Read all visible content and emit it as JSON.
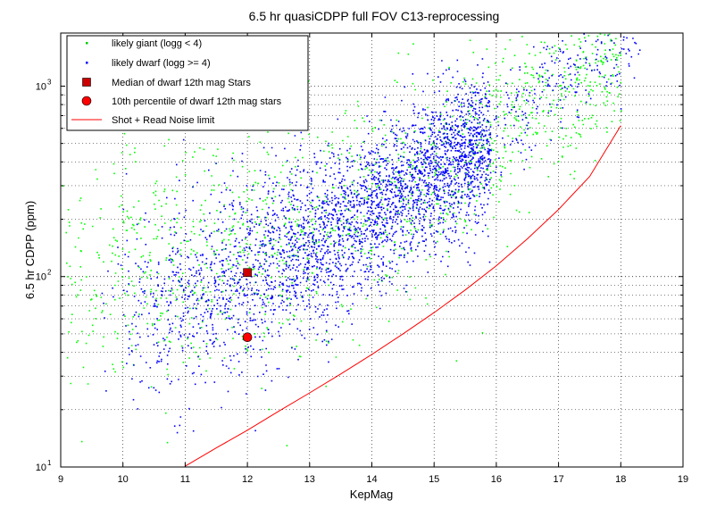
{
  "chart_data": {
    "type": "scatter",
    "title": "6.5 hr quasiCDPP full FOV C13-reprocessing",
    "xlabel": "KepMag",
    "ylabel": "6.5 hr CDPP (ppm)",
    "xlim": [
      9,
      19
    ],
    "ylim": [
      10,
      1900
    ],
    "yscale": "log",
    "grid": true,
    "legend_position": "top-left",
    "x_ticks": [
      9,
      10,
      11,
      12,
      13,
      14,
      15,
      16,
      17,
      18,
      19
    ],
    "y_ticks": [
      {
        "value": 10,
        "base": "10",
        "exp": "1"
      },
      {
        "value": 100,
        "base": "10",
        "exp": "2"
      },
      {
        "value": 1000,
        "base": "10",
        "exp": "3"
      }
    ],
    "series": [
      {
        "name": "likely giant (logg < 4)",
        "color": "#00ff00",
        "marker": "dot",
        "count_estimate": 6000,
        "density_profile": [
          {
            "kepmag": 9.0,
            "median_ppm": 90,
            "spread_dex": 0.3
          },
          {
            "kepmag": 10.0,
            "median_ppm": 110,
            "spread_dex": 0.32
          },
          {
            "kepmag": 11.0,
            "median_ppm": 130,
            "spread_dex": 0.32
          },
          {
            "kepmag": 12.0,
            "median_ppm": 150,
            "spread_dex": 0.3
          },
          {
            "kepmag": 13.0,
            "median_ppm": 180,
            "spread_dex": 0.28
          },
          {
            "kepmag": 14.0,
            "median_ppm": 240,
            "spread_dex": 0.26
          },
          {
            "kepmag": 15.0,
            "median_ppm": 330,
            "spread_dex": 0.25
          },
          {
            "kepmag": 16.0,
            "median_ppm": 600,
            "spread_dex": 0.25
          },
          {
            "kepmag": 17.0,
            "median_ppm": 1000,
            "spread_dex": 0.22
          },
          {
            "kepmag": 18.0,
            "median_ppm": 1400,
            "spread_dex": 0.15
          }
        ]
      },
      {
        "name": "likely dwarf (logg >= 4)",
        "color": "#0000ff",
        "marker": "dot",
        "count_estimate": 14000,
        "density_profile": [
          {
            "kepmag": 9.5,
            "median_ppm": 60,
            "spread_dex": 0.25
          },
          {
            "kepmag": 10.5,
            "median_ppm": 70,
            "spread_dex": 0.25
          },
          {
            "kepmag": 11.5,
            "median_ppm": 90,
            "spread_dex": 0.25
          },
          {
            "kepmag": 12.0,
            "median_ppm": 105,
            "spread_dex": 0.25
          },
          {
            "kepmag": 13.0,
            "median_ppm": 150,
            "spread_dex": 0.22
          },
          {
            "kepmag": 14.0,
            "median_ppm": 230,
            "spread_dex": 0.2
          },
          {
            "kepmag": 15.0,
            "median_ppm": 360,
            "spread_dex": 0.19
          },
          {
            "kepmag": 15.9,
            "median_ppm": 520,
            "spread_dex": 0.18
          },
          {
            "kepmag": 17.0,
            "median_ppm": 1200,
            "spread_dex": 0.15
          },
          {
            "kepmag": 18.0,
            "median_ppm": 1500,
            "spread_dex": 0.1
          }
        ]
      },
      {
        "name": "Median of dwarf 12th mag Stars",
        "color": "#ff0000",
        "marker": "square",
        "points": [
          [
            12.0,
            105
          ]
        ]
      },
      {
        "name": "10th percentile of dwarf 12th mag stars",
        "color": "#ff0000",
        "marker": "circle",
        "points": [
          [
            12.0,
            48
          ]
        ]
      },
      {
        "name": "Shot + Read Noise limit",
        "color": "#ff0000",
        "marker": "line",
        "points": [
          [
            11.0,
            10.1
          ],
          [
            11.5,
            12.6
          ],
          [
            12.0,
            15.6
          ],
          [
            12.5,
            19.6
          ],
          [
            13.0,
            24.5
          ],
          [
            13.5,
            30.8
          ],
          [
            14.0,
            39.0
          ],
          [
            14.5,
            50.0
          ],
          [
            15.0,
            64.7
          ],
          [
            15.5,
            85.0
          ],
          [
            16.0,
            114
          ],
          [
            16.5,
            158
          ],
          [
            17.0,
            225
          ],
          [
            17.5,
            335
          ],
          [
            18.0,
            620
          ]
        ]
      }
    ],
    "legend": [
      {
        "label": "likely giant (logg < 4)",
        "symbol": "green-dot"
      },
      {
        "label": "likely dwarf (logg >= 4)",
        "symbol": "blue-dot"
      },
      {
        "label": "Median of dwarf 12th mag Stars",
        "symbol": "red-square"
      },
      {
        "label": "10th percentile of dwarf 12th mag stars",
        "symbol": "red-circle"
      },
      {
        "label": "Shot + Read Noise limit",
        "symbol": "red-line"
      }
    ]
  }
}
